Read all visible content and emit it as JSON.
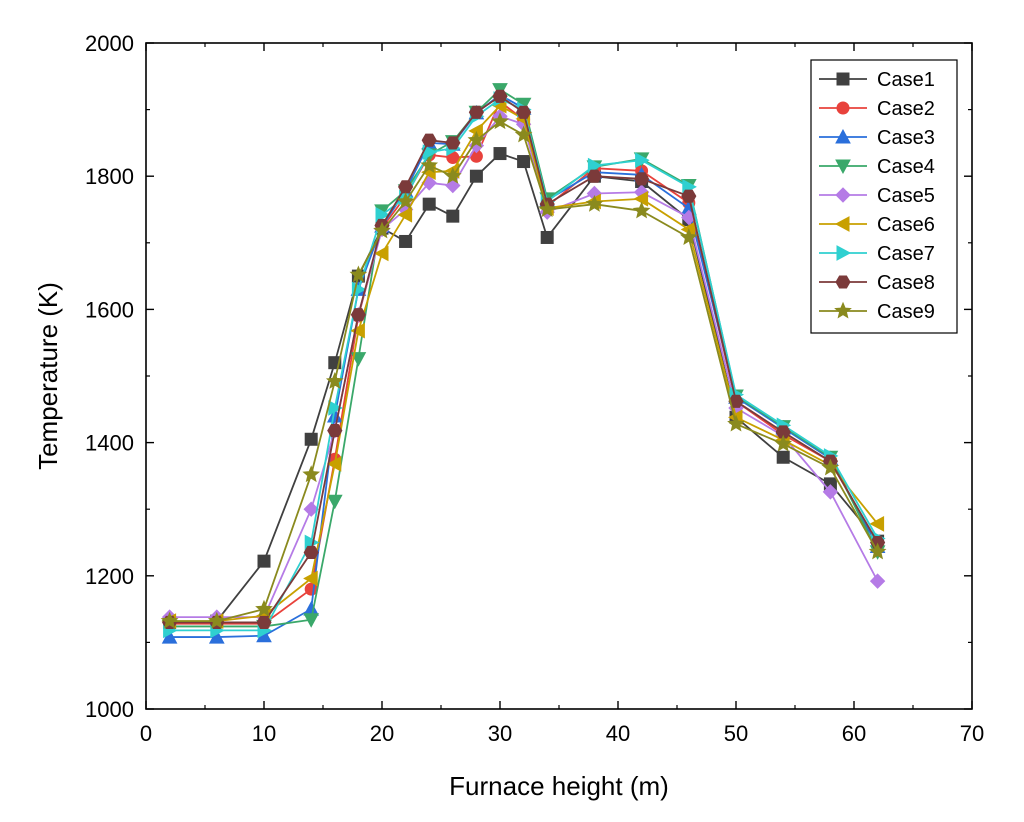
{
  "chart_data": {
    "type": "line",
    "title": "",
    "xlabel": "Furnace height (m)",
    "ylabel": "Temperature (K)",
    "xlim": [
      0,
      70
    ],
    "ylim": [
      1000,
      2000
    ],
    "xticks": [
      "0",
      "10",
      "20",
      "30",
      "40",
      "50",
      "60",
      "70"
    ],
    "yticks": [
      "1000",
      "1200",
      "1400",
      "1600",
      "1800",
      "2000"
    ],
    "grid": false,
    "legend_position": "top-right",
    "x": [
      2,
      6,
      10,
      14,
      16,
      18,
      20,
      22,
      24,
      26,
      28,
      30,
      32,
      34,
      38,
      42,
      46,
      50,
      54,
      58,
      62
    ],
    "series": [
      {
        "name": "Case1",
        "color": "#404040",
        "marker": "square",
        "values": [
          1130,
          1132,
          1222,
          1405,
          1520,
          1650,
          1722,
          1702,
          1758,
          1740,
          1800,
          1834,
          1822,
          1708,
          1800,
          1792,
          1735,
          1438,
          1378,
          1338,
          1252
        ]
      },
      {
        "name": "Case2",
        "color": "#e8423c",
        "marker": "circle",
        "values": [
          1128,
          1128,
          1128,
          1180,
          1375,
          1590,
          1722,
          1770,
          1832,
          1828,
          1830,
          1912,
          1885,
          1755,
          1812,
          1808,
          1760,
          1462,
          1412,
          1372,
          1248
        ]
      },
      {
        "name": "Case3",
        "color": "#2a6fdb",
        "marker": "triangle-up",
        "values": [
          1108,
          1108,
          1110,
          1150,
          1440,
          1630,
          1725,
          1778,
          1850,
          1848,
          1895,
          1922,
          1902,
          1764,
          1806,
          1802,
          1752,
          1468,
          1422,
          1376,
          1244
        ]
      },
      {
        "name": "Case4",
        "color": "#3aa86a",
        "marker": "triangle-down",
        "values": [
          1124,
          1124,
          1124,
          1134,
          1312,
          1526,
          1748,
          1778,
          1832,
          1852,
          1896,
          1930,
          1908,
          1766,
          1814,
          1826,
          1786,
          1470,
          1424,
          1378,
          1236
        ]
      },
      {
        "name": "Case5",
        "color": "#b57be6",
        "marker": "diamond",
        "values": [
          1138,
          1138,
          1138,
          1300,
          1418,
          1592,
          1720,
          1750,
          1790,
          1786,
          1846,
          1890,
          1878,
          1746,
          1774,
          1776,
          1738,
          1452,
          1410,
          1326,
          1192
        ]
      },
      {
        "name": "Case6",
        "color": "#c8a000",
        "marker": "triangle-left",
        "values": [
          1132,
          1132,
          1140,
          1196,
          1368,
          1568,
          1684,
          1742,
          1806,
          1808,
          1868,
          1906,
          1886,
          1752,
          1762,
          1766,
          1720,
          1438,
          1404,
          1366,
          1278
        ]
      },
      {
        "name": "Case7",
        "color": "#2fd0d0",
        "marker": "triangle-right",
        "values": [
          1118,
          1118,
          1118,
          1250,
          1452,
          1630,
          1742,
          1768,
          1836,
          1842,
          1890,
          1916,
          1900,
          1762,
          1816,
          1824,
          1784,
          1472,
          1426,
          1380,
          1256
        ]
      },
      {
        "name": "Case8",
        "color": "#7b3a3a",
        "marker": "hexagon",
        "values": [
          1130,
          1130,
          1130,
          1235,
          1418,
          1592,
          1726,
          1784,
          1854,
          1850,
          1896,
          1920,
          1896,
          1758,
          1800,
          1796,
          1770,
          1462,
          1416,
          1372,
          1250
        ]
      },
      {
        "name": "Case9",
        "color": "#8a8a1e",
        "marker": "star",
        "values": [
          1132,
          1132,
          1150,
          1352,
          1492,
          1652,
          1718,
          1762,
          1816,
          1800,
          1854,
          1882,
          1862,
          1750,
          1758,
          1748,
          1708,
          1428,
          1398,
          1362,
          1236
        ]
      }
    ]
  }
}
